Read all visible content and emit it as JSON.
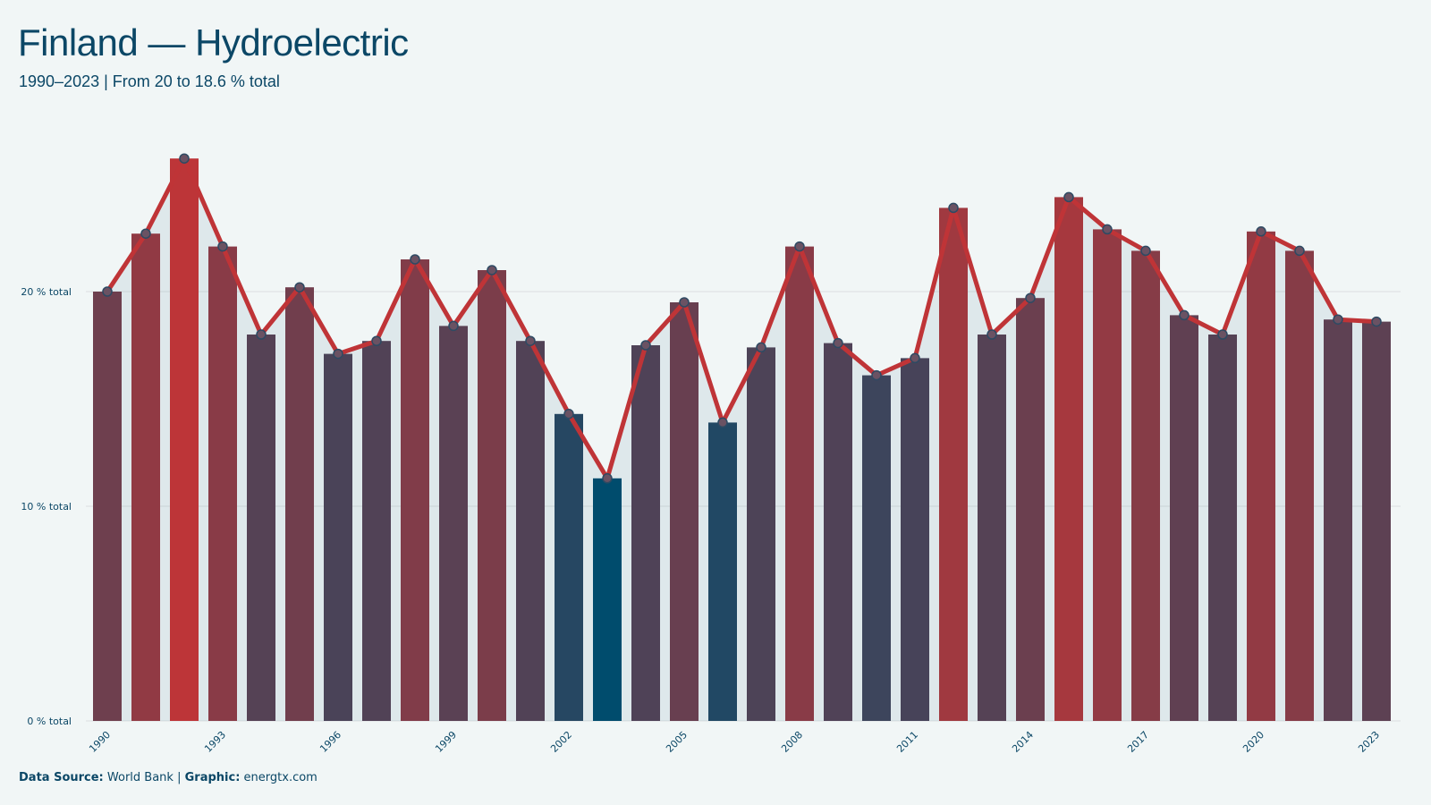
{
  "title": "Finland — Hydroelectric",
  "subtitle": "1990–2023 | From 20 to 18.6 % total",
  "footer": {
    "source_label": "Data Source:",
    "source_value": "World Bank",
    "graphic_label": "Graphic:",
    "graphic_value": "energtx.com"
  },
  "colors": {
    "high": "#bd3538",
    "low": "#004c6d",
    "line": "#bf3437",
    "grid": "#dcdfe0",
    "background": "#f1f6f6"
  },
  "chart_data": {
    "type": "bar",
    "categories": [
      "1990",
      "1991",
      "1992",
      "1993",
      "1994",
      "1995",
      "1996",
      "1997",
      "1998",
      "1999",
      "2000",
      "2001",
      "2002",
      "2003",
      "2004",
      "2005",
      "2006",
      "2007",
      "2008",
      "2009",
      "2010",
      "2011",
      "2012",
      "2013",
      "2014",
      "2015",
      "2016",
      "2017",
      "2018",
      "2019",
      "2020",
      "2021",
      "2022",
      "2023"
    ],
    "values": [
      20.0,
      22.7,
      26.2,
      22.1,
      18.0,
      20.2,
      17.1,
      17.7,
      21.5,
      18.4,
      21.0,
      17.7,
      14.3,
      11.3,
      17.5,
      19.5,
      13.9,
      17.4,
      22.1,
      17.6,
      16.1,
      16.9,
      23.9,
      18.0,
      19.7,
      24.4,
      22.9,
      21.9,
      18.9,
      18.0,
      22.8,
      21.9,
      18.7,
      18.6
    ],
    "overlay": "line",
    "ylim": [
      0,
      27
    ],
    "yticks": [
      0,
      10,
      20
    ],
    "ytick_labels": [
      "0 % total",
      "10 % total",
      "20 % total"
    ],
    "xtick_labels": [
      "1990",
      "1993",
      "1996",
      "1999",
      "2002",
      "2005",
      "2008",
      "2011",
      "2014",
      "2017",
      "2020",
      "2023"
    ],
    "grid": true
  }
}
